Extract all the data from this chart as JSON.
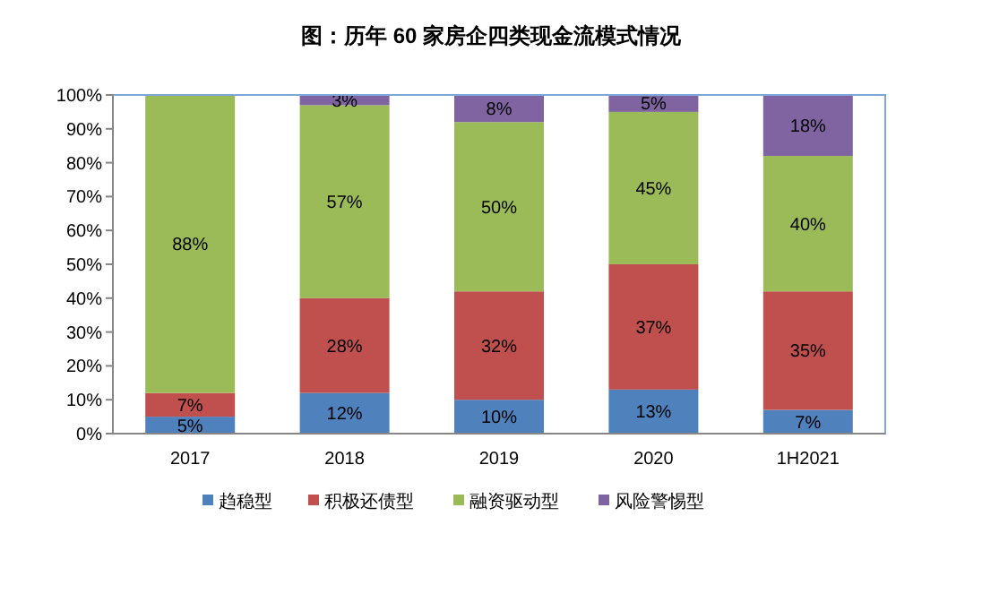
{
  "chart_data": {
    "type": "bar",
    "stacked": true,
    "title": "图：历年 60 家房企四类现金流模式情况",
    "categories": [
      "2017",
      "2018",
      "2019",
      "2020",
      "1H2021"
    ],
    "series": [
      {
        "name": "趋稳型",
        "color": "#4f81bd",
        "values": [
          5,
          12,
          10,
          13,
          7
        ],
        "value_labels": [
          "5%",
          "12%",
          "10%",
          "13%",
          "7%"
        ]
      },
      {
        "name": "积极还债型",
        "color": "#c0504d",
        "values": [
          7,
          28,
          32,
          37,
          35
        ],
        "value_labels": [
          "7%",
          "28%",
          "32%",
          "37%",
          "35%"
        ]
      },
      {
        "name": "融资驱动型",
        "color": "#9bbb59",
        "values": [
          88,
          57,
          50,
          45,
          40
        ],
        "value_labels": [
          "88%",
          "57%",
          "50%",
          "45%",
          "40%"
        ]
      },
      {
        "name": "风险警惕型",
        "color": "#8064a2",
        "values": [
          null,
          3,
          8,
          5,
          18
        ],
        "value_labels": [
          null,
          "3%",
          "8%",
          "5%",
          "18%"
        ]
      }
    ],
    "ylim": [
      0,
      100
    ],
    "yticks": [
      {
        "value": 0,
        "label": "0%"
      },
      {
        "value": 10,
        "label": "10%"
      },
      {
        "value": 20,
        "label": "20%"
      },
      {
        "value": 30,
        "label": "30%"
      },
      {
        "value": 40,
        "label": "40%"
      },
      {
        "value": 50,
        "label": "50%"
      },
      {
        "value": 60,
        "label": "60%"
      },
      {
        "value": 70,
        "label": "70%"
      },
      {
        "value": 80,
        "label": "80%"
      },
      {
        "value": 90,
        "label": "90%"
      },
      {
        "value": 100,
        "label": "100%"
      }
    ],
    "grid": false,
    "legend": "bottom"
  }
}
